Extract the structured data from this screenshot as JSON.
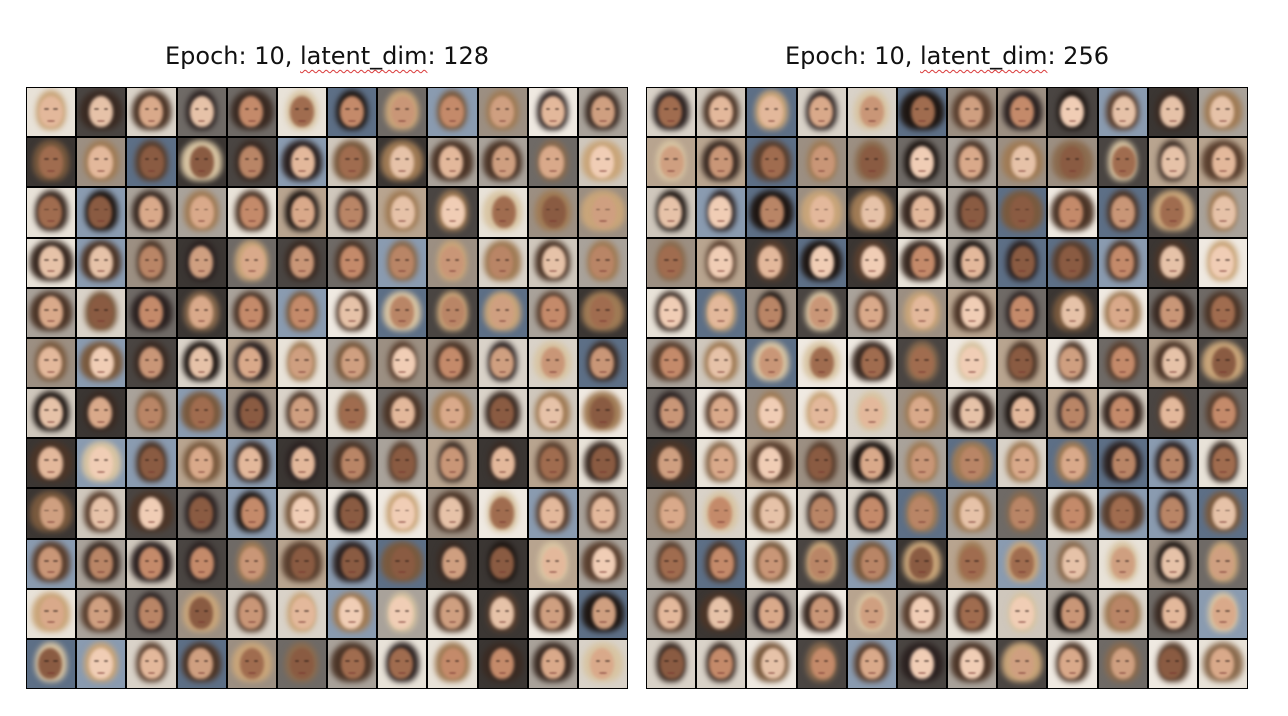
{
  "panels": [
    {
      "title_prefix": "Epoch: 10, ",
      "title_key": "latent_dim",
      "title_suffix": ": 128",
      "rows": 12,
      "cols": 12
    },
    {
      "title_prefix": "Epoch: 10, ",
      "title_key": "latent_dim",
      "title_suffix": ": 256",
      "rows": 12,
      "cols": 12
    }
  ]
}
